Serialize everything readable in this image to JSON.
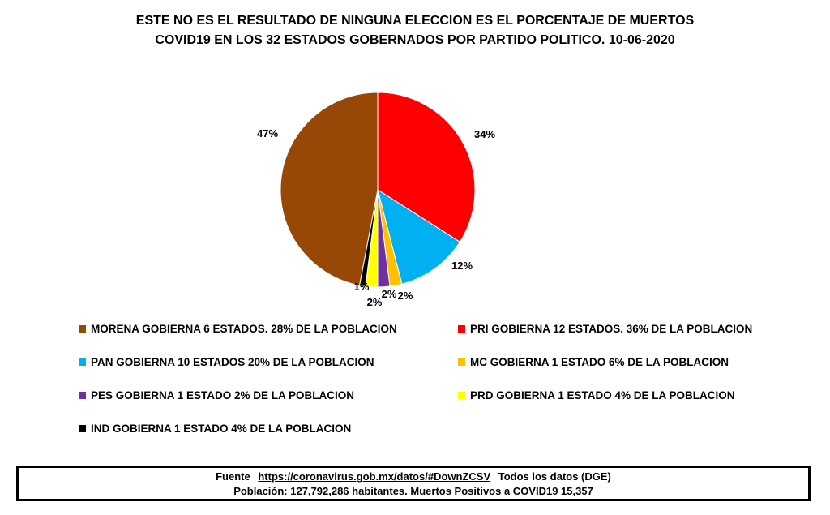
{
  "title": {
    "line1": "ESTE NO ES EL RESULTADO DE NINGUNA ELECCION ES EL PORCENTAJE DE  MUERTOS",
    "line2": "COVID19 EN LOS 32 ESTADOS GOBERNADOS POR PARTIDO POLITICO. 10-06-2020"
  },
  "chart_data": {
    "type": "pie",
    "slices": [
      {
        "value": 34,
        "label": "34%",
        "color": "#ff0000",
        "legend": "PRI GOBIERNA 12 ESTADOS. 36% DE LA POBLACION"
      },
      {
        "value": 12,
        "label": "12%",
        "color": "#00b0f0",
        "legend": "PAN GOBIERNA 10 ESTADOS 20% DE LA POBLACION"
      },
      {
        "value": 2,
        "label": "2%",
        "color": "#ffc000",
        "legend": "MC GOBIERNA 1 ESTADO 6% DE LA POBLACION"
      },
      {
        "value": 2,
        "label": "2%",
        "color": "#7030a0",
        "legend": "PES GOBIERNA 1 ESTADO 2% DE LA POBLACION"
      },
      {
        "value": 2,
        "label": "2%",
        "color": "#ffff00",
        "legend": "PRD GOBIERNA 1 ESTADO 4% DE LA POBLACION"
      },
      {
        "value": 1,
        "label": "1%",
        "color": "#000000",
        "legend": "IND GOBIERNA 1 ESTADO 4% DE LA POBLACION"
      },
      {
        "value": 47,
        "label": "47%",
        "color": "#974706",
        "legend": "MORENA GOBIERNA 6 ESTADOS. 28% DE LA POBLACION"
      }
    ],
    "legend_placement": "bottom"
  },
  "source": {
    "prefix": "Fuente",
    "link": "https://coronavirus.gob.mx/datos/#DownZCSV",
    "suffix": "Todos los datos (DGE)",
    "line2": "Población: 127,792,286 habitantes. Muertos Positivos a COVID19 15,357"
  }
}
